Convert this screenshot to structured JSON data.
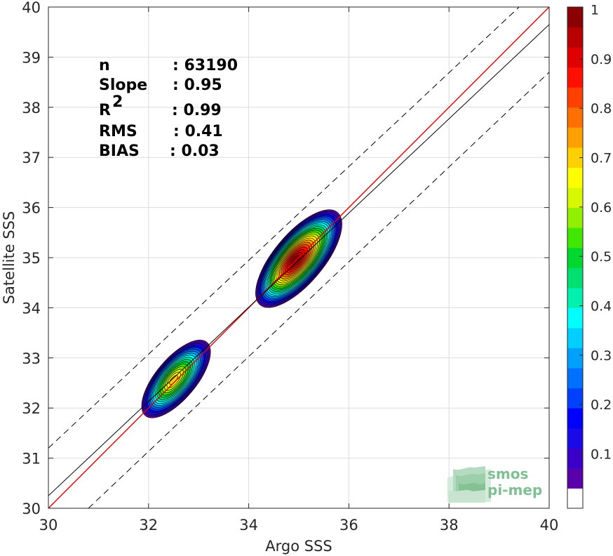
{
  "chart_data": {
    "type": "density_contour",
    "xlabel": "Argo SSS",
    "ylabel": "Satellite SSS",
    "xlim": [
      30,
      40
    ],
    "ylim": [
      30,
      40
    ],
    "x_ticks": [
      "30",
      "32",
      "34",
      "36",
      "38",
      "40"
    ],
    "y_ticks": [
      "30",
      "31",
      "32",
      "33",
      "34",
      "35",
      "36",
      "37",
      "38",
      "39",
      "40"
    ],
    "grid": true,
    "stats": [
      {
        "label": "n",
        "value": ": 63190"
      },
      {
        "label": "Slope",
        "value": ": 0.95"
      },
      {
        "label": "R",
        "superscript": "2",
        "value": ": 0.99"
      },
      {
        "label": "RMS",
        "value": ": 0.41"
      },
      {
        "label": "BIAS",
        "value": ": 0.03"
      }
    ],
    "lines": [
      {
        "role": "identity",
        "color": "#e00000",
        "style": "solid",
        "intercept": 0,
        "slope": 1
      },
      {
        "role": "regression",
        "color": "#000000",
        "style": "solid",
        "points": [
          [
            30,
            30.25
          ],
          [
            40,
            39.65
          ]
        ]
      },
      {
        "role": "upper-bound",
        "color": "#000000",
        "style": "dashed",
        "points": [
          [
            30,
            31.2
          ],
          [
            39.4,
            40
          ]
        ]
      },
      {
        "role": "lower-bound",
        "color": "#000000",
        "style": "dashed",
        "points": [
          [
            30.8,
            30
          ],
          [
            40,
            38.7
          ]
        ]
      }
    ],
    "density_clusters": [
      {
        "center": [
          35.0,
          34.98
        ],
        "peak": 1.0,
        "extent_x": [
          34.1,
          35.7
        ],
        "extent_y": [
          33.98,
          36.05
        ]
      },
      {
        "center": [
          32.55,
          32.58
        ],
        "peak": 0.72,
        "extent_x": [
          31.95,
          33.25
        ],
        "extent_y": [
          31.88,
          33.5
        ]
      }
    ],
    "colorbar": {
      "min": 0,
      "max": 1,
      "ticks": [
        "0.1",
        "0.2",
        "0.3",
        "0.4",
        "0.5",
        "0.6",
        "0.7",
        "0.8",
        "0.9",
        "1"
      ],
      "colors": [
        "#ffffff",
        "#5a00aa",
        "#3b00c8",
        "#1a0ae8",
        "#0000ff",
        "#0040ff",
        "#0070ff",
        "#00a0ff",
        "#00cfff",
        "#00ffff",
        "#00f0b0",
        "#00e070",
        "#00d830",
        "#40e800",
        "#90f000",
        "#d8f800",
        "#ffff00",
        "#ffd000",
        "#ffa000",
        "#ff7000",
        "#ff4000",
        "#ff1000",
        "#e00000",
        "#b80000",
        "#8b0000"
      ]
    }
  },
  "logo": {
    "line1": "smos",
    "line2": "pi-mep"
  }
}
